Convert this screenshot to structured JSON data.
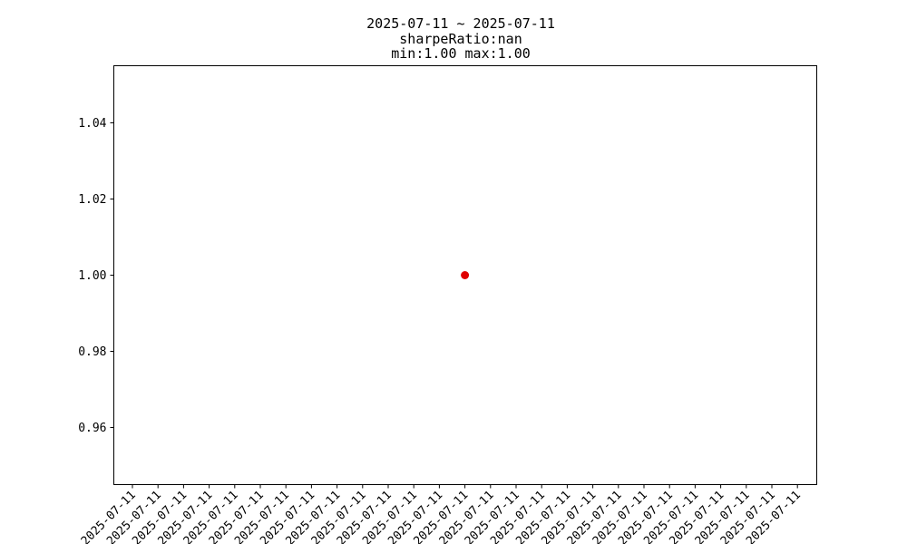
{
  "chart_data": {
    "type": "scatter",
    "title": "2025-07-11 ~ 2025-07-11",
    "subtitle_lines": [
      "sharpeRatio:nan",
      "min:1.00 max:1.00"
    ],
    "xlabel": "",
    "ylabel": "",
    "x_tick_labels": [
      "2025-07-11",
      "2025-07-11",
      "2025-07-11",
      "2025-07-11",
      "2025-07-11",
      "2025-07-11",
      "2025-07-11",
      "2025-07-11",
      "2025-07-11",
      "2025-07-11",
      "2025-07-11",
      "2025-07-11",
      "2025-07-11",
      "2025-07-11",
      "2025-07-11",
      "2025-07-11",
      "2025-07-11",
      "2025-07-11",
      "2025-07-11",
      "2025-07-11",
      "2025-07-11",
      "2025-07-11",
      "2025-07-11",
      "2025-07-11",
      "2025-07-11",
      "2025-07-11",
      "2025-07-11"
    ],
    "x_center_index": 13,
    "ylim": [
      0.945,
      1.055
    ],
    "y_ticks": [
      0.96,
      0.98,
      1.0,
      1.02,
      1.04
    ],
    "y_tick_labels": [
      "0.96",
      "0.98",
      "1.00",
      "1.02",
      "1.04"
    ],
    "points": [
      {
        "x": "2025-07-11",
        "y": 1.0
      }
    ],
    "point_color": "#e00000",
    "grid": false,
    "legend": "none"
  }
}
